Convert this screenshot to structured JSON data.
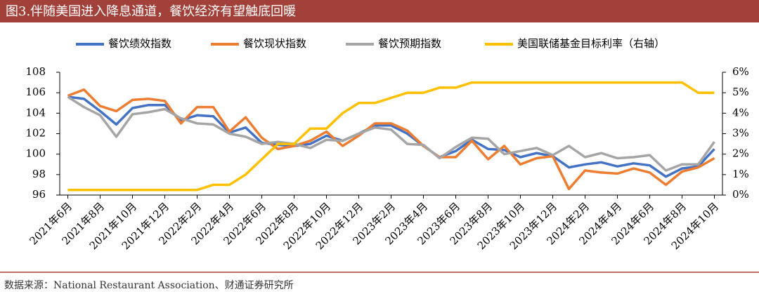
{
  "chart_data": {
    "type": "line",
    "title": "图3.伴随美国进入降息通道，餐饮经济有望触底回暖",
    "source": "数据来源：National Restaurant Association、财通证券研究所",
    "categories": [
      "2021年6月",
      null,
      "2021年8月",
      null,
      "2021年10月",
      null,
      "2021年12月",
      null,
      "2022年2月",
      null,
      "2022年4月",
      null,
      "2022年6月",
      null,
      "2022年8月",
      null,
      "2022年10月",
      null,
      "2022年12月",
      null,
      "2023年2月",
      null,
      "2023年4月",
      null,
      "2023年6月",
      null,
      "2023年8月",
      null,
      "2023年10月",
      null,
      "2023年12月",
      null,
      "2024年2月",
      null,
      "2024年4月",
      null,
      "2024年6月",
      null,
      "2024年8月",
      null,
      "2024年10月"
    ],
    "series": [
      {
        "name": "餐饮绩效指数",
        "color": "#4472c4",
        "values": [
          105.6,
          105.4,
          104.2,
          102.9,
          104.5,
          104.8,
          104.8,
          103.3,
          103.8,
          103.7,
          102.1,
          102.6,
          101.1,
          100.9,
          100.8,
          101.0,
          101.8,
          101.3,
          102.0,
          102.8,
          102.8,
          102.0,
          100.8,
          99.7,
          100.3,
          101.4,
          100.5,
          100.4,
          99.7,
          100.1,
          99.8,
          98.7,
          99.0,
          99.2,
          98.8,
          99.1,
          98.9,
          97.8,
          98.6,
          98.8,
          100.5
        ]
      },
      {
        "name": "餐饮现状指数",
        "color": "#ed7d31",
        "values": [
          105.7,
          106.3,
          104.7,
          104.2,
          105.3,
          105.4,
          105.2,
          103.0,
          104.6,
          104.6,
          102.2,
          103.6,
          101.6,
          100.5,
          100.8,
          101.3,
          102.2,
          100.8,
          101.8,
          103.0,
          103.0,
          102.3,
          100.8,
          99.7,
          99.7,
          101.3,
          99.5,
          100.8,
          99.0,
          99.6,
          99.8,
          96.6,
          98.4,
          98.2,
          98.1,
          98.6,
          98.2,
          97.0,
          98.3,
          98.7,
          99.6
        ]
      },
      {
        "name": "餐饮预期指数",
        "color": "#a5a5a5",
        "values": [
          105.6,
          104.6,
          103.8,
          101.7,
          103.9,
          104.1,
          104.4,
          103.5,
          103.0,
          102.9,
          102.0,
          101.7,
          101.0,
          101.2,
          101.0,
          100.6,
          101.4,
          101.3,
          102.0,
          102.6,
          102.4,
          101.0,
          100.9,
          99.6,
          100.7,
          101.6,
          101.5,
          100.0,
          100.3,
          100.6,
          99.9,
          100.8,
          99.7,
          100.1,
          99.6,
          99.7,
          99.9,
          98.4,
          99.0,
          99.0,
          101.2
        ]
      },
      {
        "name": "美国联储基金目标利率（右轴）",
        "color": "#ffc000",
        "axis": "y2",
        "values": [
          0.25,
          0.25,
          0.25,
          0.25,
          0.25,
          0.25,
          0.25,
          0.25,
          0.25,
          0.5,
          0.5,
          1.0,
          1.75,
          2.5,
          2.5,
          3.25,
          3.25,
          4.0,
          4.5,
          4.5,
          4.75,
          5.0,
          5.0,
          5.25,
          5.25,
          5.5,
          5.5,
          5.5,
          5.5,
          5.5,
          5.5,
          5.5,
          5.5,
          5.5,
          5.5,
          5.5,
          5.5,
          5.5,
          5.5,
          5.0,
          5.0
        ]
      }
    ],
    "ylim": [
      96,
      108
    ],
    "yticks": [
      96,
      98,
      100,
      102,
      104,
      106,
      108
    ],
    "y2lim": [
      0,
      6
    ],
    "y2ticks": [
      {
        "value": 0,
        "label": "0%"
      },
      {
        "value": 1,
        "label": "1%"
      },
      {
        "value": 2,
        "label": "2%"
      },
      {
        "value": 3,
        "label": "3%"
      },
      {
        "value": 4,
        "label": "4%"
      },
      {
        "value": 5,
        "label": "5%"
      },
      {
        "value": 6,
        "label": "6%"
      }
    ],
    "legend": "top",
    "grid": false
  }
}
